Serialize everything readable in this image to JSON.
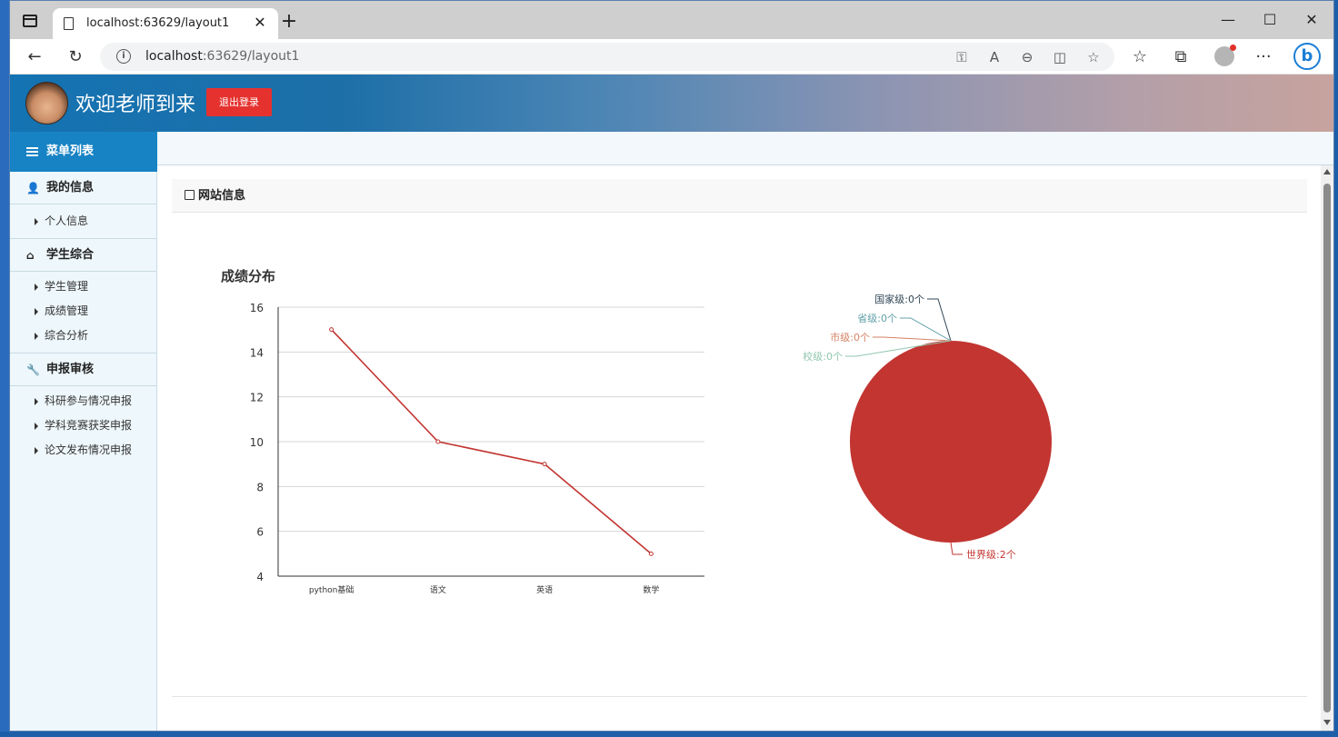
{
  "browser": {
    "tab_title": "localhost:63629/layout1",
    "tab_close": "✕",
    "new_tab": "+",
    "url_host": "localhost",
    "url_rest": ":63629/layout1",
    "window_controls": {
      "minimize": "—",
      "maximize": "☐",
      "close": "✕"
    },
    "icons": {
      "back": "←",
      "refresh": "↻",
      "key": "⚿",
      "read_aloud": "A",
      "zoom": "⊖",
      "split": "◫",
      "favorite_add": "☆",
      "favorites": "☆",
      "collections": "⧉",
      "more": "···",
      "bing": "b"
    }
  },
  "header": {
    "welcome": "欢迎老师到来",
    "logout_label": "退出登录"
  },
  "sidebar": {
    "title": "菜单列表",
    "groups": [
      {
        "label": "我的信息",
        "icon": "user-icon",
        "items": [
          "个人信息"
        ]
      },
      {
        "label": "学生综合",
        "icon": "home-icon",
        "items": [
          "学生管理",
          "成绩管理",
          "综合分析"
        ]
      },
      {
        "label": "申报审核",
        "icon": "wrench-icon",
        "items": [
          "科研参与情况申报",
          "学科竞赛获奖申报",
          "论文发布情况申报"
        ]
      }
    ]
  },
  "panel": {
    "title": "网站信息"
  },
  "chart_data": [
    {
      "type": "line",
      "title": "成绩分布",
      "categories": [
        "python基础",
        "语文",
        "英语",
        "数学"
      ],
      "values": [
        15,
        10,
        9,
        5
      ],
      "ylim": [
        4,
        16
      ],
      "yticks": [
        4,
        6,
        8,
        10,
        12,
        14,
        16
      ],
      "color": "#c23531",
      "grid": true
    },
    {
      "type": "pie",
      "slices": [
        {
          "name": "世界级",
          "value": 2,
          "label": "世界级:2个",
          "color": "#c23531"
        },
        {
          "name": "国家级",
          "value": 0,
          "label": "国家级:0个",
          "color": "#2f4554"
        },
        {
          "name": "省级",
          "value": 0,
          "label": "省级:0个",
          "color": "#61a0a8"
        },
        {
          "name": "市级",
          "value": 0,
          "label": "市级:0个",
          "color": "#d48265"
        },
        {
          "name": "校级",
          "value": 0,
          "label": "校级:0个",
          "color": "#91c7ae"
        }
      ]
    }
  ]
}
